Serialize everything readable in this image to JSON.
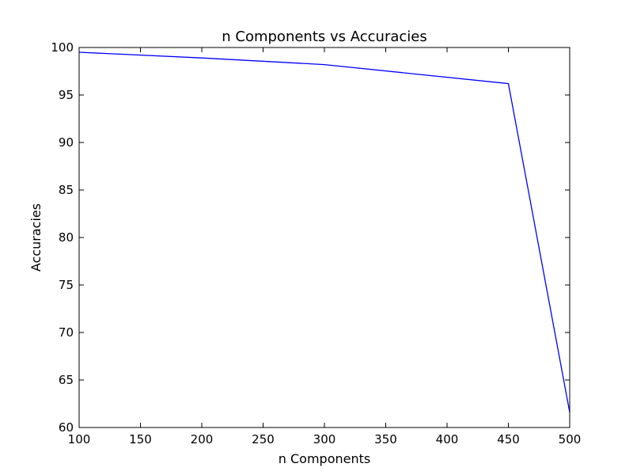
{
  "chart_data": {
    "type": "line",
    "title": "n Components vs Accuracies",
    "xlabel": "n Components",
    "ylabel": "Accuracies",
    "xlim": [
      100,
      500
    ],
    "ylim": [
      60,
      100
    ],
    "xticks": [
      100,
      150,
      200,
      250,
      300,
      350,
      400,
      450,
      500
    ],
    "yticks": [
      60,
      65,
      70,
      75,
      80,
      85,
      90,
      95,
      100
    ],
    "grid": false,
    "series": [
      {
        "color": "#0000ff",
        "x": [
          100,
          200,
          300,
          450,
          500
        ],
        "y": [
          99.5,
          98.9,
          98.2,
          96.2,
          61.6
        ]
      }
    ]
  }
}
